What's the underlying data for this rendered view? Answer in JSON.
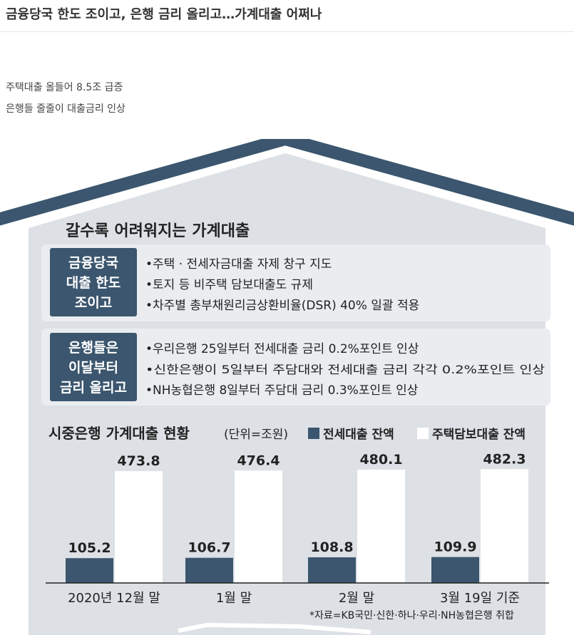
{
  "article": {
    "headline": "금융당국 한도 조이고, 은행 금리 올리고…가계대출 어쩌나",
    "subheads": [
      "주택대출 올들어 8.5조 급증",
      "은행들 줄줄이 대출금리 인상"
    ]
  },
  "infographic": {
    "title": "갈수록 어려워지는 가계대출",
    "box1": {
      "label_lines": [
        "금융당국",
        "대출 한도",
        "조이고"
      ],
      "items": [
        "•주택 · 전세자금대출 자제 창구 지도",
        "•토지 등 비주택 담보대출도 규제",
        "•차주별 총부채원리금상환비율(DSR) 40% 일괄 적용"
      ]
    },
    "box2": {
      "label_lines": [
        "은행들은",
        "이달부터",
        "금리 올리고"
      ],
      "items": [
        "•우리은행 25일부터 전세대출 금리 0.2%포인트 인상",
        "•신한은행이 5일부터 주담대와 전세대출 금리 각각 0.2%포인트 인상",
        "•NH농협은행 8일부터 주담대 금리 0.3%포인트 인상"
      ]
    },
    "chart_title": "시중은행 가계대출 현황",
    "chart_unit": "(단위=조원)",
    "source": "*자료=KB국민·신한·하나·우리·NH농협은행 취합"
  },
  "colors": {
    "house": "#3b566e",
    "house_fill": "#dde1e6",
    "label_box": "#3b566e",
    "info_box": "#eaecef",
    "bar_dark": "#3b566e",
    "bar_light": "#ffffff"
  },
  "chart_data": {
    "type": "bar",
    "categories": [
      "2020년 12월 말",
      "1월 말",
      "2월 말",
      "3월 19일 기준"
    ],
    "series": [
      {
        "name": "전세대출 잔액",
        "values": [
          105.2,
          106.7,
          108.8,
          109.9
        ],
        "labels": [
          "105.2",
          "106.7",
          "108.8",
          "109.9"
        ]
      },
      {
        "name": "주택담보대출 잔액",
        "values": [
          473.8,
          476.4,
          480.1,
          482.3
        ],
        "labels": [
          "473.8",
          "476.4",
          "480.1",
          "482.3"
        ]
      }
    ],
    "legend_position": "top-right",
    "grid": false
  }
}
